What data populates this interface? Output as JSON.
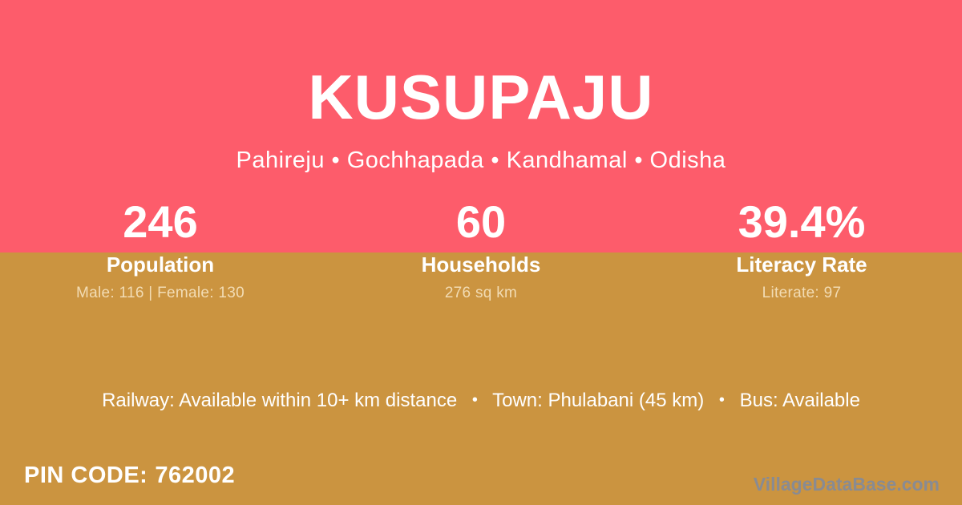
{
  "header": {
    "title": "KUSUPAJU",
    "subtitle": "Pahireju • Gochhapada • Kandhamal • Odisha"
  },
  "stats": [
    {
      "value": "246",
      "label": "Population",
      "detail": "Male: 116 | Female: 130"
    },
    {
      "value": "60",
      "label": "Households",
      "detail": "276 sq km"
    },
    {
      "value": "39.4%",
      "label": "Literacy Rate",
      "detail": "Literate: 97"
    }
  ],
  "transport": {
    "items": [
      "Railway: Available within 10+ km distance",
      "Town: Phulabani (45 km)",
      "Bus: Available"
    ],
    "separator": "•"
  },
  "footer": {
    "pin_label": "PIN CODE:",
    "pin_value": "762002",
    "watermark": "VillageDataBase.com"
  },
  "colors": {
    "header_background": "#FD5C6B",
    "body_background": "#CB9440",
    "primary_text": "#FFFFFF",
    "muted_text": "#F2DCB4",
    "watermark_text": "#898B92"
  }
}
